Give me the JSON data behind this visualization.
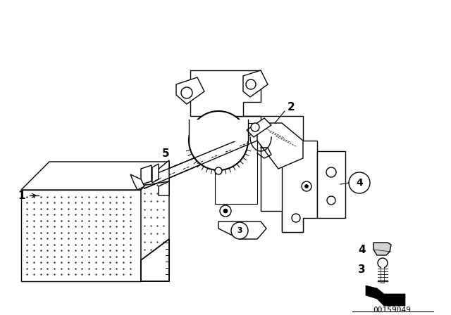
{
  "background_color": "#ffffff",
  "diagram_number_text": "00159049",
  "label_fontsize": 11,
  "label_fontweight": "bold",
  "line_color": "#000000",
  "lw": 1.0
}
